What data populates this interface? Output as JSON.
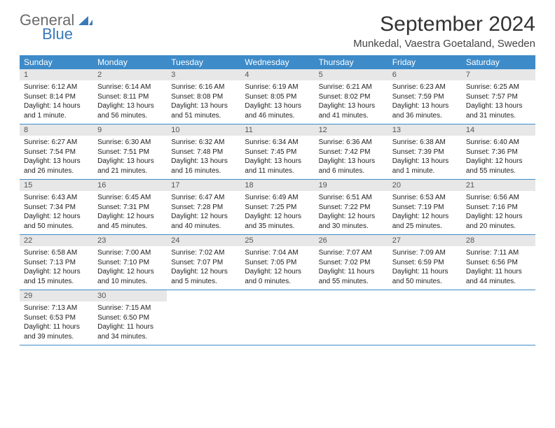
{
  "brand": {
    "name1": "General",
    "name2": "Blue"
  },
  "title": "September 2024",
  "location": "Munkedal, Vaestra Goetaland, Sweden",
  "colors": {
    "header_bg": "#3d8bc9",
    "header_text": "#ffffff",
    "daynum_bg": "#e7e7e7",
    "logo_blue": "#3a7ab8",
    "week_divider": "#3d8bc9"
  },
  "day_names": [
    "Sunday",
    "Monday",
    "Tuesday",
    "Wednesday",
    "Thursday",
    "Friday",
    "Saturday"
  ],
  "days": [
    {
      "n": "1",
      "sunrise": "6:12 AM",
      "sunset": "8:14 PM",
      "daylight": "14 hours and 1 minute."
    },
    {
      "n": "2",
      "sunrise": "6:14 AM",
      "sunset": "8:11 PM",
      "daylight": "13 hours and 56 minutes."
    },
    {
      "n": "3",
      "sunrise": "6:16 AM",
      "sunset": "8:08 PM",
      "daylight": "13 hours and 51 minutes."
    },
    {
      "n": "4",
      "sunrise": "6:19 AM",
      "sunset": "8:05 PM",
      "daylight": "13 hours and 46 minutes."
    },
    {
      "n": "5",
      "sunrise": "6:21 AM",
      "sunset": "8:02 PM",
      "daylight": "13 hours and 41 minutes."
    },
    {
      "n": "6",
      "sunrise": "6:23 AM",
      "sunset": "7:59 PM",
      "daylight": "13 hours and 36 minutes."
    },
    {
      "n": "7",
      "sunrise": "6:25 AM",
      "sunset": "7:57 PM",
      "daylight": "13 hours and 31 minutes."
    },
    {
      "n": "8",
      "sunrise": "6:27 AM",
      "sunset": "7:54 PM",
      "daylight": "13 hours and 26 minutes."
    },
    {
      "n": "9",
      "sunrise": "6:30 AM",
      "sunset": "7:51 PM",
      "daylight": "13 hours and 21 minutes."
    },
    {
      "n": "10",
      "sunrise": "6:32 AM",
      "sunset": "7:48 PM",
      "daylight": "13 hours and 16 minutes."
    },
    {
      "n": "11",
      "sunrise": "6:34 AM",
      "sunset": "7:45 PM",
      "daylight": "13 hours and 11 minutes."
    },
    {
      "n": "12",
      "sunrise": "6:36 AM",
      "sunset": "7:42 PM",
      "daylight": "13 hours and 6 minutes."
    },
    {
      "n": "13",
      "sunrise": "6:38 AM",
      "sunset": "7:39 PM",
      "daylight": "13 hours and 1 minute."
    },
    {
      "n": "14",
      "sunrise": "6:40 AM",
      "sunset": "7:36 PM",
      "daylight": "12 hours and 55 minutes."
    },
    {
      "n": "15",
      "sunrise": "6:43 AM",
      "sunset": "7:34 PM",
      "daylight": "12 hours and 50 minutes."
    },
    {
      "n": "16",
      "sunrise": "6:45 AM",
      "sunset": "7:31 PM",
      "daylight": "12 hours and 45 minutes."
    },
    {
      "n": "17",
      "sunrise": "6:47 AM",
      "sunset": "7:28 PM",
      "daylight": "12 hours and 40 minutes."
    },
    {
      "n": "18",
      "sunrise": "6:49 AM",
      "sunset": "7:25 PM",
      "daylight": "12 hours and 35 minutes."
    },
    {
      "n": "19",
      "sunrise": "6:51 AM",
      "sunset": "7:22 PM",
      "daylight": "12 hours and 30 minutes."
    },
    {
      "n": "20",
      "sunrise": "6:53 AM",
      "sunset": "7:19 PM",
      "daylight": "12 hours and 25 minutes."
    },
    {
      "n": "21",
      "sunrise": "6:56 AM",
      "sunset": "7:16 PM",
      "daylight": "12 hours and 20 minutes."
    },
    {
      "n": "22",
      "sunrise": "6:58 AM",
      "sunset": "7:13 PM",
      "daylight": "12 hours and 15 minutes."
    },
    {
      "n": "23",
      "sunrise": "7:00 AM",
      "sunset": "7:10 PM",
      "daylight": "12 hours and 10 minutes."
    },
    {
      "n": "24",
      "sunrise": "7:02 AM",
      "sunset": "7:07 PM",
      "daylight": "12 hours and 5 minutes."
    },
    {
      "n": "25",
      "sunrise": "7:04 AM",
      "sunset": "7:05 PM",
      "daylight": "12 hours and 0 minutes."
    },
    {
      "n": "26",
      "sunrise": "7:07 AM",
      "sunset": "7:02 PM",
      "daylight": "11 hours and 55 minutes."
    },
    {
      "n": "27",
      "sunrise": "7:09 AM",
      "sunset": "6:59 PM",
      "daylight": "11 hours and 50 minutes."
    },
    {
      "n": "28",
      "sunrise": "7:11 AM",
      "sunset": "6:56 PM",
      "daylight": "11 hours and 44 minutes."
    },
    {
      "n": "29",
      "sunrise": "7:13 AM",
      "sunset": "6:53 PM",
      "daylight": "11 hours and 39 minutes."
    },
    {
      "n": "30",
      "sunrise": "7:15 AM",
      "sunset": "6:50 PM",
      "daylight": "11 hours and 34 minutes."
    }
  ],
  "labels": {
    "sunrise": "Sunrise: ",
    "sunset": "Sunset: ",
    "daylight": "Daylight: "
  },
  "layout": {
    "start_offset": 0,
    "weeks": 5,
    "cols": 7
  }
}
